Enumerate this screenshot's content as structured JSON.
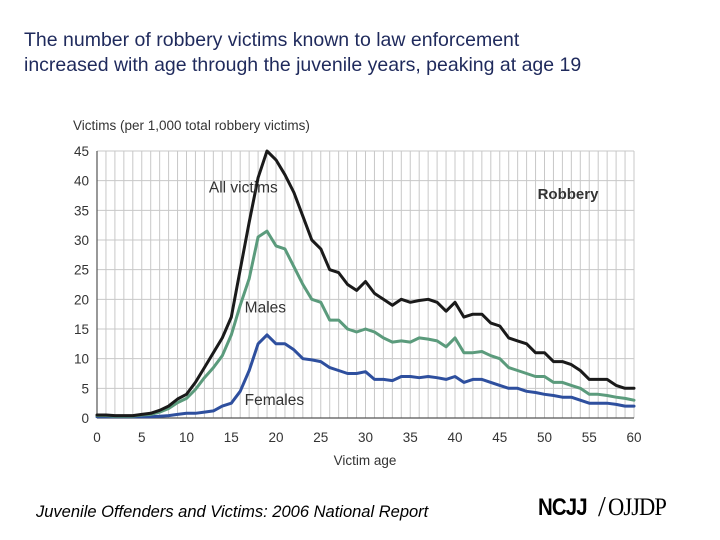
{
  "headline": {
    "line1": "The number of robbery victims known to law enforcement",
    "line2": "increased with age through the juvenile years, peaking at age 19"
  },
  "footer": {
    "report": "Juvenile Offenders and Victims: 2006 National Report",
    "logo_left": "NCJJ",
    "logo_sep": "/",
    "logo_right": "OJJDP"
  },
  "chart_data": {
    "type": "line",
    "title": "Robbery",
    "ylabel": "Victims (per 1,000 total robbery victims)",
    "xlabel": "Victim age",
    "xlim": [
      0,
      60
    ],
    "ylim": [
      0,
      45
    ],
    "xticks": [
      0,
      5,
      10,
      15,
      20,
      25,
      30,
      35,
      40,
      45,
      50,
      55,
      60
    ],
    "yticks": [
      0,
      5,
      10,
      15,
      20,
      25,
      30,
      35,
      40,
      45
    ],
    "grid": true,
    "x": [
      0,
      1,
      2,
      3,
      4,
      5,
      6,
      7,
      8,
      9,
      10,
      11,
      12,
      13,
      14,
      15,
      16,
      17,
      18,
      19,
      20,
      21,
      22,
      23,
      24,
      25,
      26,
      27,
      28,
      29,
      30,
      31,
      32,
      33,
      34,
      35,
      36,
      37,
      38,
      39,
      40,
      41,
      42,
      43,
      44,
      45,
      46,
      47,
      48,
      49,
      50,
      51,
      52,
      53,
      54,
      55,
      56,
      57,
      58,
      59,
      60
    ],
    "series": [
      {
        "name": "All victims",
        "color": "#1a1a1a",
        "values": [
          0.5,
          0.5,
          0.4,
          0.4,
          0.4,
          0.6,
          0.8,
          1.3,
          2.0,
          3.2,
          4.0,
          6.0,
          8.5,
          11.0,
          13.5,
          17.0,
          25.0,
          33.0,
          40.5,
          45.0,
          43.5,
          41.0,
          38.0,
          34.0,
          30.0,
          28.5,
          25.0,
          24.5,
          22.5,
          21.5,
          23.0,
          21.0,
          20.0,
          19.0,
          20.0,
          19.5,
          19.8,
          20.0,
          19.5,
          18.0,
          19.5,
          17.0,
          17.5,
          17.5,
          16.0,
          15.5,
          13.5,
          13.0,
          12.5,
          11.0,
          11.0,
          9.5,
          9.5,
          9.0,
          8.0,
          6.5,
          6.5,
          6.5,
          5.5,
          5.0,
          5.0
        ]
      },
      {
        "name": "Males",
        "color": "#5b9b7c",
        "values": [
          0.4,
          0.4,
          0.3,
          0.3,
          0.3,
          0.5,
          0.6,
          1.0,
          1.6,
          2.6,
          3.3,
          4.8,
          6.8,
          8.5,
          10.5,
          14.0,
          19.0,
          23.5,
          30.5,
          31.5,
          29.0,
          28.5,
          25.5,
          22.5,
          20.0,
          19.5,
          16.5,
          16.5,
          15.0,
          14.5,
          15.0,
          14.5,
          13.5,
          12.8,
          13.0,
          12.8,
          13.5,
          13.3,
          13.0,
          12.0,
          13.5,
          11.0,
          11.0,
          11.2,
          10.5,
          10.0,
          8.5,
          8.0,
          7.5,
          7.0,
          7.0,
          6.0,
          6.0,
          5.5,
          5.0,
          4.0,
          4.0,
          3.8,
          3.5,
          3.3,
          3.0
        ]
      },
      {
        "name": "Females",
        "color": "#2e4f9e",
        "values": [
          0.2,
          0.2,
          0.2,
          0.2,
          0.2,
          0.2,
          0.2,
          0.3,
          0.4,
          0.6,
          0.8,
          0.8,
          1.0,
          1.2,
          2.0,
          2.5,
          4.5,
          8.0,
          12.5,
          14.0,
          12.5,
          12.5,
          11.5,
          10.0,
          9.8,
          9.5,
          8.5,
          8.0,
          7.5,
          7.5,
          7.8,
          6.5,
          6.5,
          6.3,
          7.0,
          7.0,
          6.8,
          7.0,
          6.8,
          6.5,
          7.0,
          6.0,
          6.5,
          6.5,
          6.0,
          5.5,
          5.0,
          5.0,
          4.5,
          4.3,
          4.0,
          3.8,
          3.5,
          3.5,
          3.0,
          2.5,
          2.5,
          2.5,
          2.3,
          2.0,
          2.0
        ]
      }
    ],
    "annotations": [
      {
        "text": "All victims",
        "x": 12.5,
        "y": 38.0
      },
      {
        "text": "Males",
        "x": 16.5,
        "y": 17.8
      },
      {
        "text": "Females",
        "x": 16.5,
        "y": 2.2
      }
    ]
  }
}
